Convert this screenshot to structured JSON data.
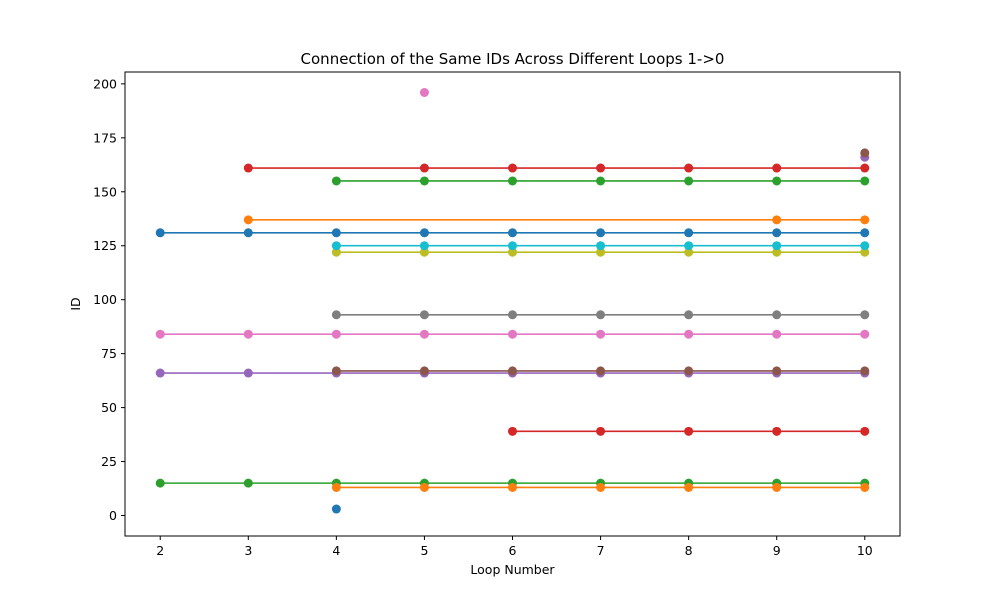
{
  "chart_data": {
    "type": "line",
    "title": "Connection of the Same IDs Across Different Loops 1->0",
    "xlabel": "Loop Number",
    "ylabel": "ID",
    "xlim": [
      1.6,
      10.4
    ],
    "ylim": [
      -9.5,
      205.5
    ],
    "xticks": [
      2,
      3,
      4,
      5,
      6,
      7,
      8,
      9,
      10
    ],
    "yticks": [
      0,
      25,
      50,
      75,
      100,
      125,
      150,
      175,
      200
    ],
    "grid": false,
    "legend": "none",
    "series": [
      {
        "color": "#1f77b4",
        "x": [
          2,
          3,
          4,
          5,
          6,
          7,
          8,
          9,
          10
        ],
        "y": [
          131,
          131,
          131,
          131,
          131,
          131,
          131,
          131,
          131
        ]
      },
      {
        "color": "#ff7f0e",
        "x": [
          3,
          9,
          10
        ],
        "y": [
          137,
          137,
          137
        ]
      },
      {
        "color": "#2ca02c",
        "x": [
          2,
          3,
          4,
          5,
          6,
          7,
          8,
          9,
          10
        ],
        "y": [
          15,
          15,
          15,
          15,
          15,
          15,
          15,
          15,
          15
        ]
      },
      {
        "color": "#d62728",
        "x": [
          3,
          5,
          6,
          7,
          8,
          9,
          10
        ],
        "y": [
          161,
          161,
          161,
          161,
          161,
          161,
          161
        ]
      },
      {
        "color": "#9467bd",
        "x": [
          2,
          3,
          4,
          5,
          6,
          7,
          8,
          9,
          10
        ],
        "y": [
          66,
          66,
          66,
          66,
          66,
          66,
          66,
          66,
          66
        ]
      },
      {
        "color": "#8c564b",
        "x": [
          4,
          5,
          6,
          7,
          8,
          9,
          10
        ],
        "y": [
          67,
          67,
          67,
          67,
          67,
          67,
          67
        ]
      },
      {
        "color": "#e377c2",
        "x": [
          2,
          3,
          4,
          5,
          6,
          7,
          8,
          9,
          10
        ],
        "y": [
          84,
          84,
          84,
          84,
          84,
          84,
          84,
          84,
          84
        ]
      },
      {
        "color": "#7f7f7f",
        "x": [
          4,
          5,
          6,
          7,
          8,
          9,
          10
        ],
        "y": [
          93,
          93,
          93,
          93,
          93,
          93,
          93
        ]
      },
      {
        "color": "#bcbd22",
        "x": [
          4,
          5,
          6,
          7,
          8,
          9,
          10
        ],
        "y": [
          122,
          122,
          122,
          122,
          122,
          122,
          122
        ]
      },
      {
        "color": "#17becf",
        "x": [
          4,
          5,
          6,
          7,
          8,
          9,
          10
        ],
        "y": [
          125,
          125,
          125,
          125,
          125,
          125,
          125
        ]
      },
      {
        "color": "#1f77b4",
        "x": [
          4
        ],
        "y": [
          3
        ]
      },
      {
        "color": "#ff7f0e",
        "x": [
          4,
          5,
          6,
          7,
          8,
          9,
          10
        ],
        "y": [
          13,
          13,
          13,
          13,
          13,
          13,
          13
        ]
      },
      {
        "color": "#2ca02c",
        "x": [
          4,
          5,
          6,
          7,
          8,
          9,
          10
        ],
        "y": [
          155,
          155,
          155,
          155,
          155,
          155,
          155
        ]
      },
      {
        "color": "#d62728",
        "x": [
          6,
          7,
          8,
          9,
          10
        ],
        "y": [
          39,
          39,
          39,
          39,
          39
        ]
      },
      {
        "color": "#9467bd",
        "x": [
          10
        ],
        "y": [
          166
        ]
      },
      {
        "color": "#8c564b",
        "x": [
          10
        ],
        "y": [
          168
        ]
      },
      {
        "color": "#e377c2",
        "x": [
          5
        ],
        "y": [
          196
        ]
      }
    ]
  }
}
